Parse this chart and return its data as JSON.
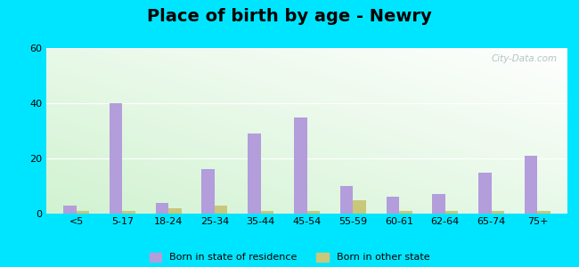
{
  "title": "Place of birth by age - Newry",
  "categories": [
    "<5",
    "5-17",
    "18-24",
    "25-34",
    "35-44",
    "45-54",
    "55-59",
    "60-61",
    "62-64",
    "65-74",
    "75+"
  ],
  "born_in_state": [
    3,
    40,
    4,
    16,
    29,
    35,
    10,
    6,
    7,
    15,
    21
  ],
  "born_other_state": [
    1,
    1,
    2,
    3,
    1,
    1,
    5,
    1,
    1,
    1,
    1
  ],
  "bar_color_state": "#b39ddb",
  "bar_color_other": "#c8c87a",
  "ylim": [
    0,
    60
  ],
  "yticks": [
    0,
    20,
    40,
    60
  ],
  "background_outer": "#00e5ff",
  "title_fontsize": 14,
  "legend_label_state": "Born in state of residence",
  "legend_label_other": "Born in other state",
  "bar_width": 0.28
}
